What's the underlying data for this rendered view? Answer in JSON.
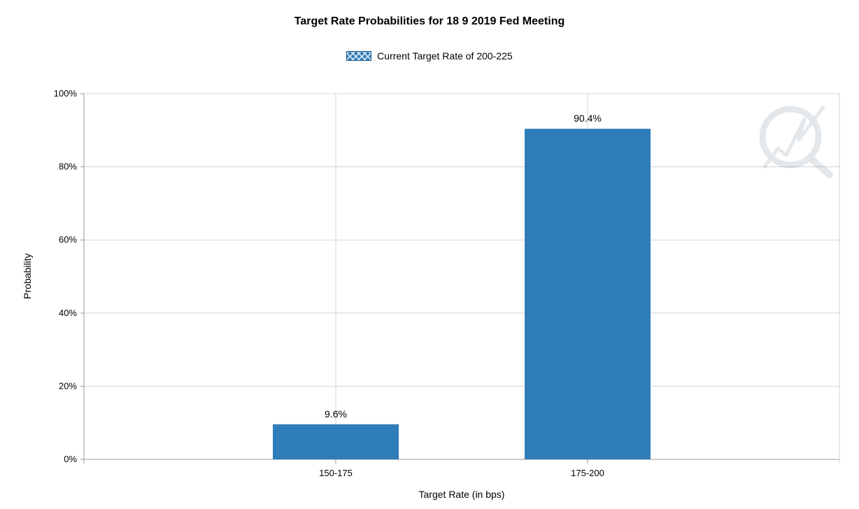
{
  "chart_data": {
    "type": "bar",
    "title": "Target Rate Probabilities for 18 9 2019 Fed Meeting",
    "legend": [
      {
        "label": "Current Target Rate of 200-225",
        "color": "#2f7db8",
        "pattern": "crosshatch"
      }
    ],
    "legend_position": "top-center",
    "xlabel": "Target Rate (in bps)",
    "ylabel": "Probability",
    "categories": [
      "150-175",
      "175-200"
    ],
    "values": [
      9.6,
      90.4
    ],
    "data_labels": [
      "9.6%",
      "90.4%"
    ],
    "ylim": [
      0,
      100
    ],
    "yticks": [
      0,
      20,
      40,
      60,
      80,
      100
    ],
    "ytick_labels": [
      "0%",
      "20%",
      "40%",
      "60%",
      "80%",
      "100%"
    ],
    "bar_color": "#2f7db8",
    "grid": true
  }
}
